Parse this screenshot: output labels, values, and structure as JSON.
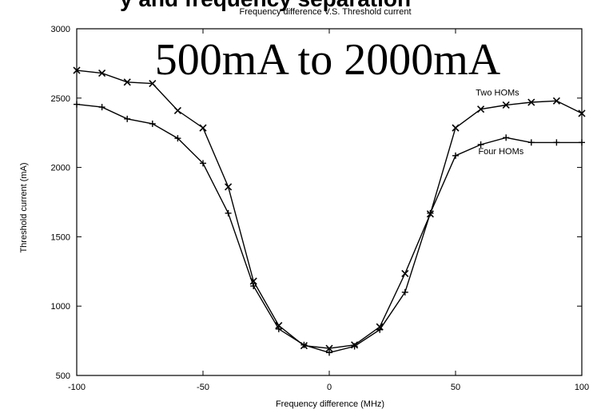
{
  "header": {
    "partial_title": "y and frequency separation",
    "overlay_text": "500mA to 2000mA"
  },
  "chart_data": {
    "type": "line",
    "title": "Frequency difference V.S. Threshold current",
    "xlabel": "Frequency difference (MHz)",
    "ylabel": "Threshold current (mA)",
    "xlim": [
      -100,
      100
    ],
    "ylim": [
      500,
      3000
    ],
    "xticks": [
      -100,
      -50,
      0,
      50,
      100
    ],
    "yticks": [
      500,
      1000,
      1500,
      2000,
      2500,
      3000
    ],
    "grid": false,
    "series": [
      {
        "name": "Two HOMs",
        "marker": "x",
        "x": [
          -100,
          -90,
          -80,
          -70,
          -60,
          -50,
          -40,
          -30,
          -20,
          -10,
          0,
          10,
          20,
          30,
          40,
          50,
          60,
          70,
          80,
          90,
          100
        ],
        "values": [
          2700,
          2680,
          2615,
          2605,
          2410,
          2285,
          1860,
          1180,
          860,
          715,
          695,
          720,
          850,
          1235,
          1665,
          2285,
          2420,
          2450,
          2470,
          2480,
          2390
        ]
      },
      {
        "name": "Four HOMs",
        "marker": "+",
        "x": [
          -100,
          -90,
          -80,
          -70,
          -60,
          -50,
          -40,
          -30,
          -20,
          -10,
          0,
          10,
          20,
          30,
          40,
          50,
          60,
          70,
          80,
          90,
          100
        ],
        "values": [
          2455,
          2435,
          2350,
          2315,
          2210,
          2030,
          1670,
          1145,
          835,
          720,
          665,
          710,
          830,
          1100,
          1670,
          2085,
          2165,
          2215,
          2180,
          2180,
          2180
        ]
      }
    ],
    "series_labels": [
      {
        "text": "Two HOMs",
        "x": 58,
        "y": 2520
      },
      {
        "text": "Four HOMs",
        "x": 59,
        "y": 2095
      }
    ],
    "colors": {
      "line": "#000000",
      "background": "#ffffff",
      "overlay": "#000000"
    }
  }
}
